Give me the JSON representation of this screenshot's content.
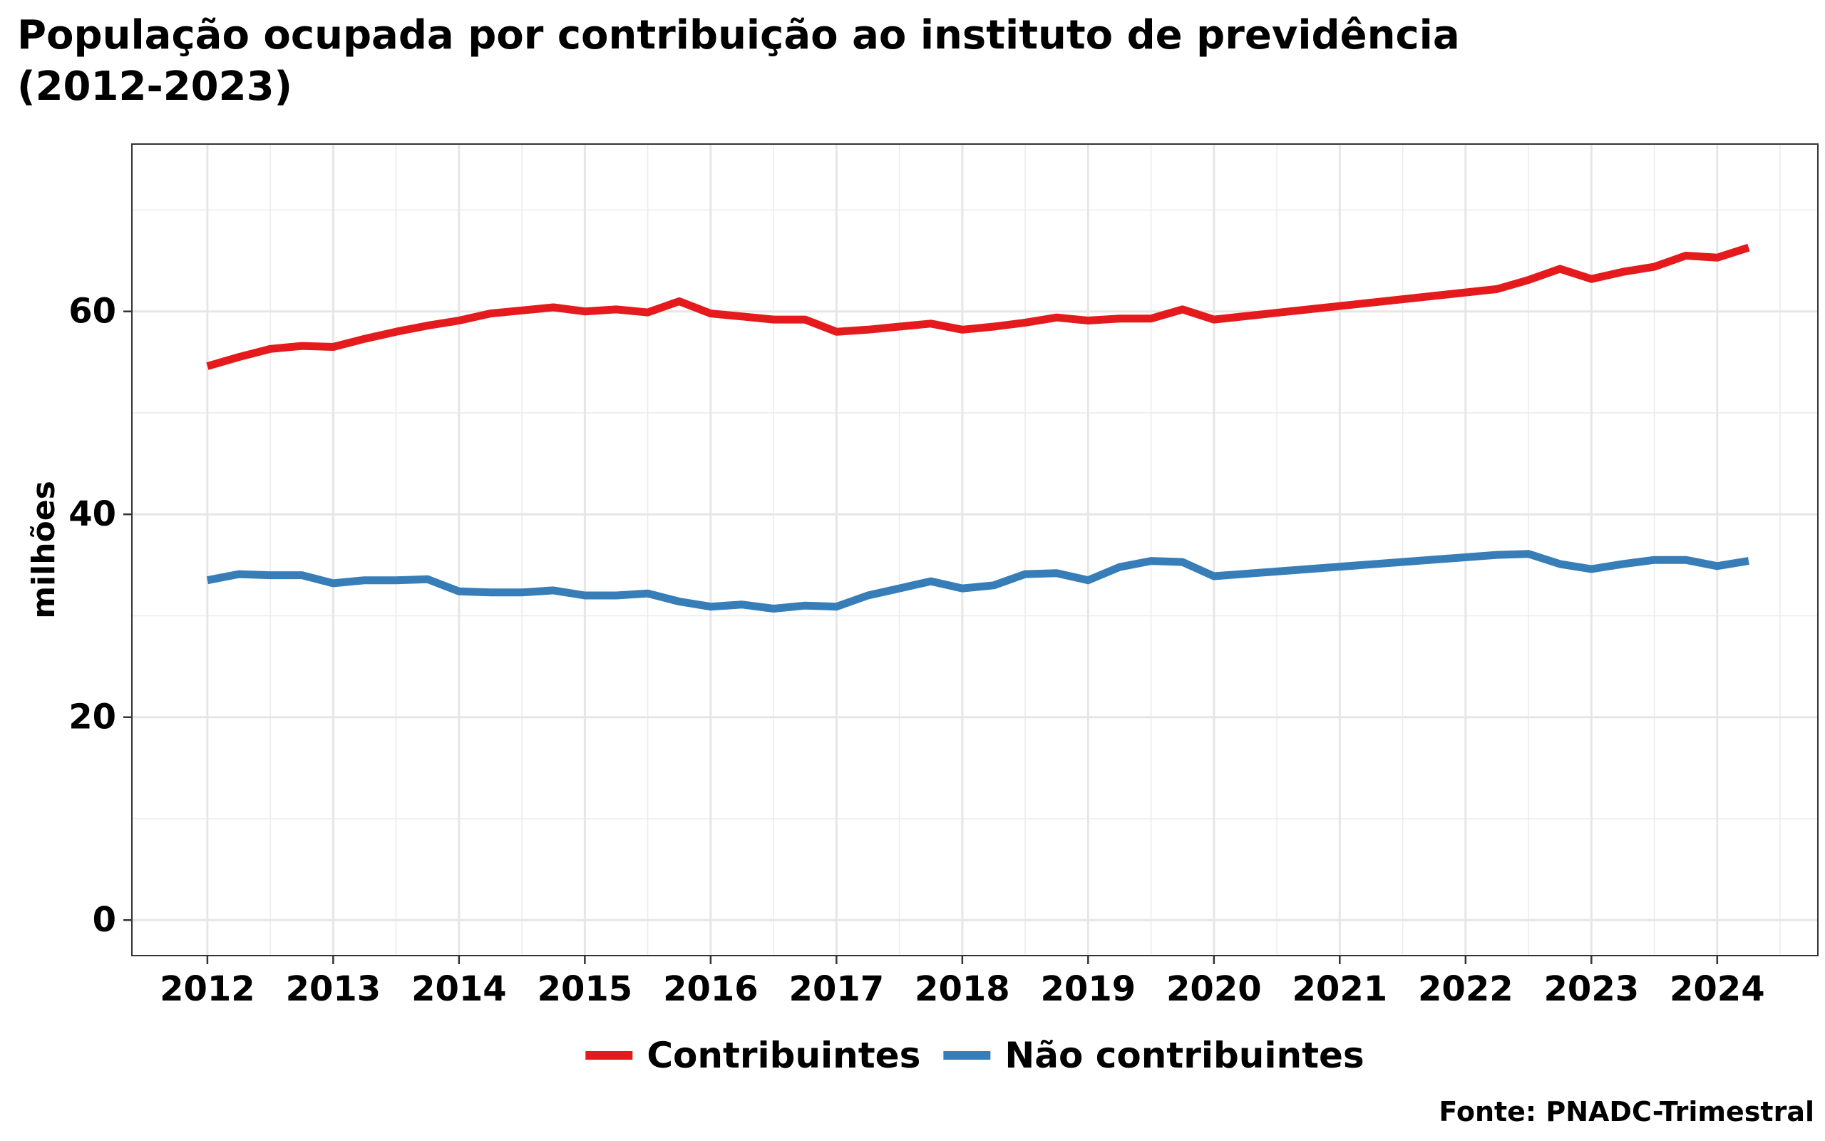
{
  "chart_data": {
    "type": "line",
    "title": "População ocupada por contribuição ao instituto de previdência\n(2012-2023)",
    "xlabel": "",
    "ylabel": "milhões",
    "caption": "Fonte: PNADC-Trimestral",
    "xlim": [
      2011.4,
      2024.8
    ],
    "ylim": [
      -3.5,
      76.5
    ],
    "x_ticks": [
      "2012",
      "2013",
      "2014",
      "2015",
      "2016",
      "2017",
      "2018",
      "2019",
      "2020",
      "2021",
      "2022",
      "2023",
      "2024"
    ],
    "y_ticks": [
      "0",
      "20",
      "40",
      "60"
    ],
    "grid": true,
    "legend_position": "bottom",
    "x": [
      2012.0,
      2012.25,
      2012.5,
      2012.75,
      2013.0,
      2013.25,
      2013.5,
      2013.75,
      2014.0,
      2014.25,
      2014.5,
      2014.75,
      2015.0,
      2015.25,
      2015.5,
      2015.75,
      2016.0,
      2016.25,
      2016.5,
      2016.75,
      2017.0,
      2017.25,
      2017.5,
      2017.75,
      2018.0,
      2018.25,
      2018.5,
      2018.75,
      2019.0,
      2019.25,
      2019.5,
      2019.75,
      2020.0,
      2022.25,
      2022.5,
      2022.75,
      2023.0,
      2023.25,
      2023.5,
      2023.75,
      2024.0,
      2024.25
    ],
    "series": [
      {
        "name": "Contribuintes",
        "color": "#e41a1c",
        "values": [
          54.6,
          55.5,
          56.3,
          56.6,
          56.5,
          57.3,
          58.0,
          58.6,
          59.1,
          59.8,
          60.1,
          60.4,
          60.0,
          60.2,
          59.9,
          61.0,
          59.8,
          59.5,
          59.2,
          59.2,
          58.0,
          58.2,
          58.5,
          58.8,
          58.2,
          58.5,
          58.9,
          59.4,
          59.1,
          59.3,
          59.3,
          60.2,
          59.2,
          62.2,
          63.1,
          64.2,
          63.2,
          63.9,
          64.4,
          65.5,
          65.3,
          66.3
        ]
      },
      {
        "name": "Não contribuintes",
        "color": "#377eb8",
        "values": [
          33.5,
          34.1,
          34.0,
          34.0,
          33.2,
          33.5,
          33.5,
          33.6,
          32.4,
          32.3,
          32.3,
          32.5,
          32.0,
          32.0,
          32.2,
          31.4,
          30.9,
          31.1,
          30.7,
          31.0,
          30.9,
          32.0,
          32.7,
          33.4,
          32.7,
          33.0,
          34.1,
          34.2,
          33.5,
          34.8,
          35.4,
          35.3,
          33.9,
          36.0,
          36.1,
          35.1,
          34.6,
          35.1,
          35.5,
          35.5,
          34.9,
          35.4
        ]
      }
    ]
  }
}
